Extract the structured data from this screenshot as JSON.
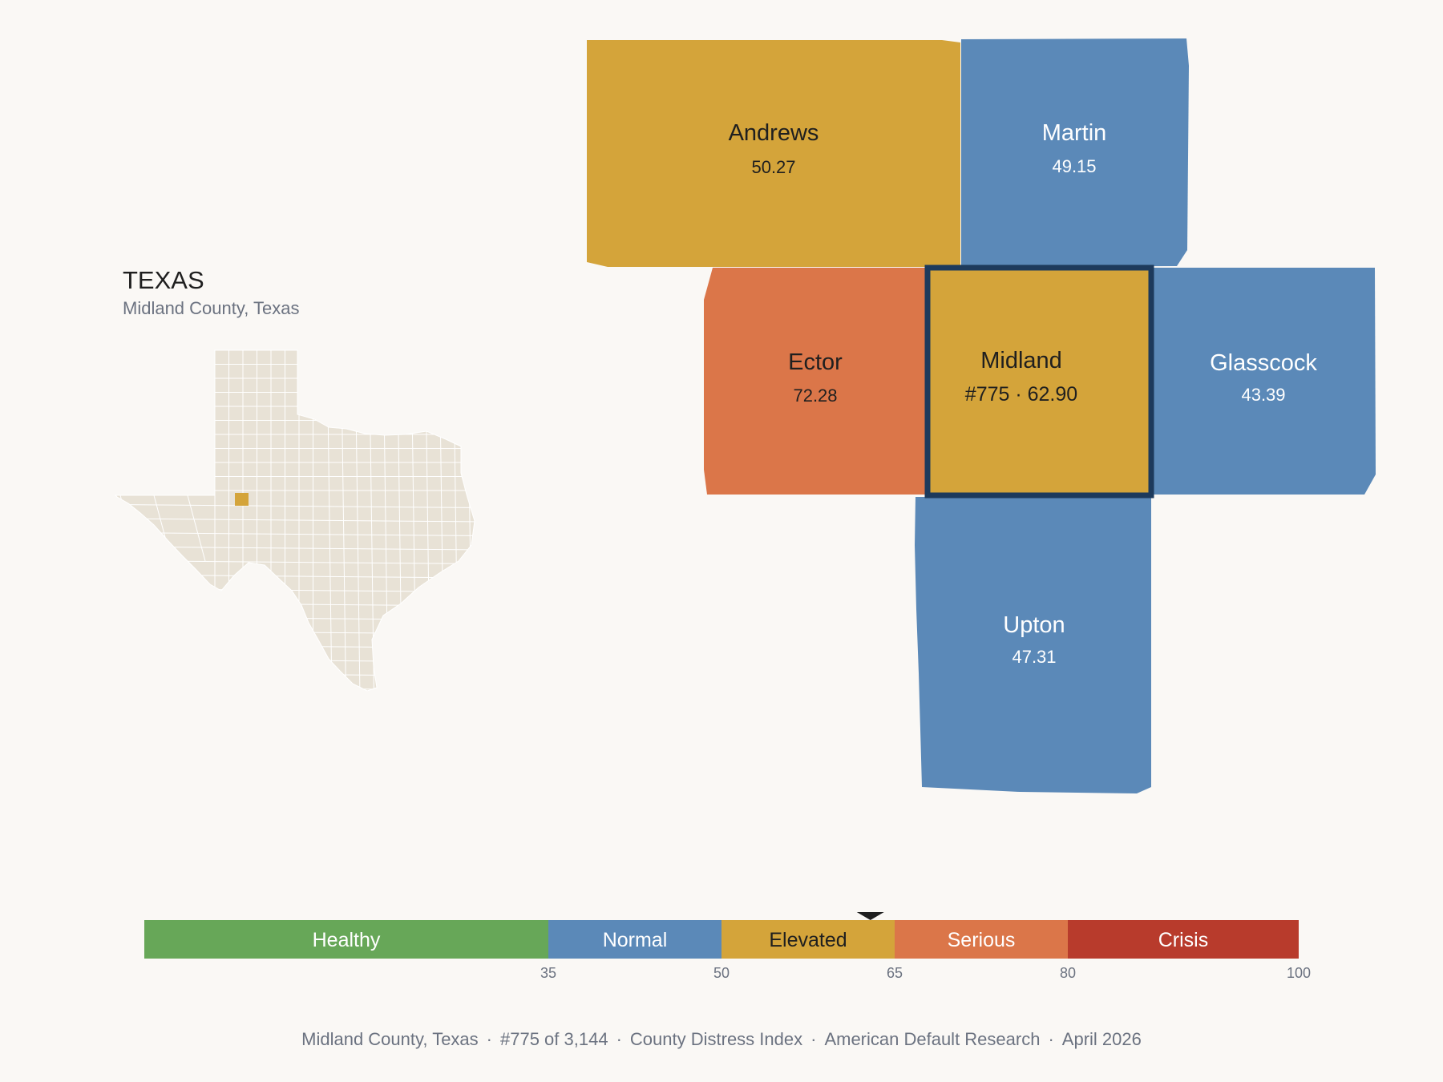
{
  "state": {
    "name": "TEXAS",
    "subtitle": "Midland County, Texas",
    "highlight_color": "#d4a43a",
    "fill_color": "#e8e2d6"
  },
  "counties": [
    {
      "id": "andrews",
      "name": "Andrews",
      "value": "50.27",
      "color": "#d4a43a",
      "text": "#1f1f1f"
    },
    {
      "id": "martin",
      "name": "Martin",
      "value": "49.15",
      "color": "#5b89b8",
      "text": "#ffffff"
    },
    {
      "id": "ector",
      "name": "Ector",
      "value": "72.28",
      "color": "#db7649",
      "text": "#1f1f1f"
    },
    {
      "id": "midland",
      "name": "Midland",
      "value": "#775 · 62.90",
      "color": "#d4a43a",
      "text": "#1f1f1f",
      "selected": true,
      "outline": "#1d3a5c"
    },
    {
      "id": "glasscock",
      "name": "Glasscock",
      "value": "43.39",
      "color": "#5b89b8",
      "text": "#ffffff"
    },
    {
      "id": "upton",
      "name": "Upton",
      "value": "47.31",
      "color": "#5b89b8",
      "text": "#ffffff"
    }
  ],
  "legend": {
    "min": 0,
    "max": 100,
    "marker_value": 62.9,
    "categories": [
      {
        "label": "Healthy",
        "from": 0,
        "to": 35,
        "color": "#67a758",
        "text": "#ffffff"
      },
      {
        "label": "Normal",
        "from": 35,
        "to": 50,
        "color": "#5b89b8",
        "text": "#ffffff"
      },
      {
        "label": "Elevated",
        "from": 50,
        "to": 65,
        "color": "#d4a43a",
        "text": "#1f1f1f"
      },
      {
        "label": "Serious",
        "from": 65,
        "to": 80,
        "color": "#db7649",
        "text": "#ffffff"
      },
      {
        "label": "Crisis",
        "from": 80,
        "to": 100,
        "color": "#b83b2c",
        "text": "#ffffff"
      }
    ],
    "ticks": [
      "35",
      "50",
      "65",
      "80",
      "100"
    ]
  },
  "footer": {
    "items": [
      "Midland County, Texas",
      "#775 of 3,144",
      "County Distress Index",
      "American Default Research",
      "April 2026"
    ],
    "separator": "·"
  }
}
